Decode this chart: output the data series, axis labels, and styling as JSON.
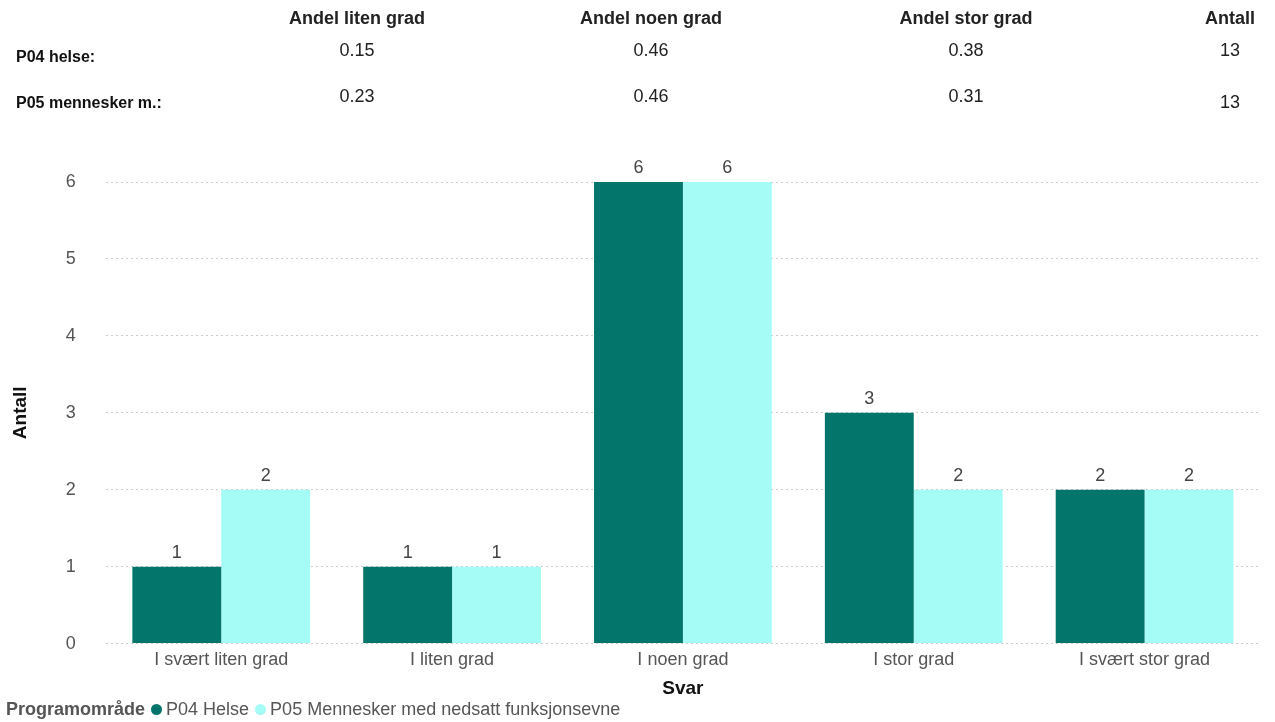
{
  "chart_data": [
    {
      "type": "other",
      "annotations": [
        "Andel liten grad",
        "Andel noen grad",
        "Andel stor grad",
        "Antall",
        "P04 helse:",
        "0.15",
        "0.46",
        "0.38",
        "13",
        "P05 mennesker m.:",
        "0.23",
        "0.46",
        "0.31",
        "13"
      ]
    },
    {
      "type": "bar",
      "categories": [
        "I svært liten grad",
        "I liten grad",
        "I noen grad",
        "I stor grad",
        "I svært stor grad"
      ],
      "series": [
        {
          "name": "P04 Helse",
          "color": "#04756b",
          "values": [
            1,
            1,
            6,
            3,
            2
          ]
        },
        {
          "name": "P05 Mennesker med nedsatt funksjonsevne",
          "color": "#a5fbf5",
          "values": [
            2,
            1,
            6,
            2,
            2
          ]
        }
      ],
      "xlabel": "Svar",
      "ylabel": "Antall",
      "legend_title": "Programområde",
      "legend": "bottom left",
      "ylim": [
        0,
        6
      ],
      "yticks": [
        0,
        1,
        2,
        3,
        4,
        5,
        6
      ],
      "grid": "y",
      "data_labels": true
    }
  ]
}
